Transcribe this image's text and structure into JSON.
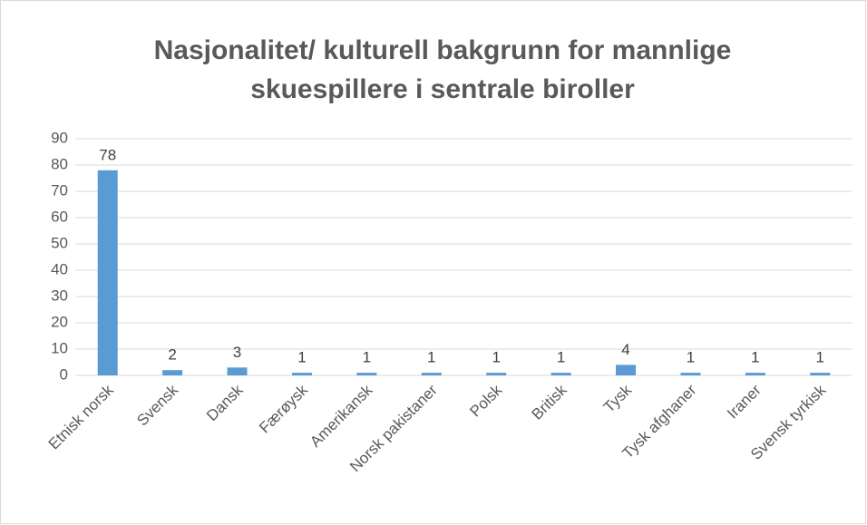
{
  "chart_data": {
    "type": "bar",
    "title": [
      "Nasjonalitet/ kulturell bakgrunn for mannlige",
      "skuespillere i sentrale biroller"
    ],
    "categories": [
      "Etnisk norsk",
      "Svensk",
      "Dansk",
      "Færøysk",
      "Amerikansk",
      "Norsk pakistaner",
      "Polsk",
      "Britisk",
      "Tysk",
      "Tysk afghaner",
      "Iraner",
      "Svensk tyrkisk"
    ],
    "values": [
      78,
      2,
      3,
      1,
      1,
      1,
      1,
      1,
      4,
      1,
      1,
      1
    ],
    "color": "#5b9bd5",
    "ylim": [
      0,
      90
    ],
    "yticks": [
      0,
      10,
      20,
      30,
      40,
      50,
      60,
      70,
      80,
      90
    ],
    "grid": true
  }
}
